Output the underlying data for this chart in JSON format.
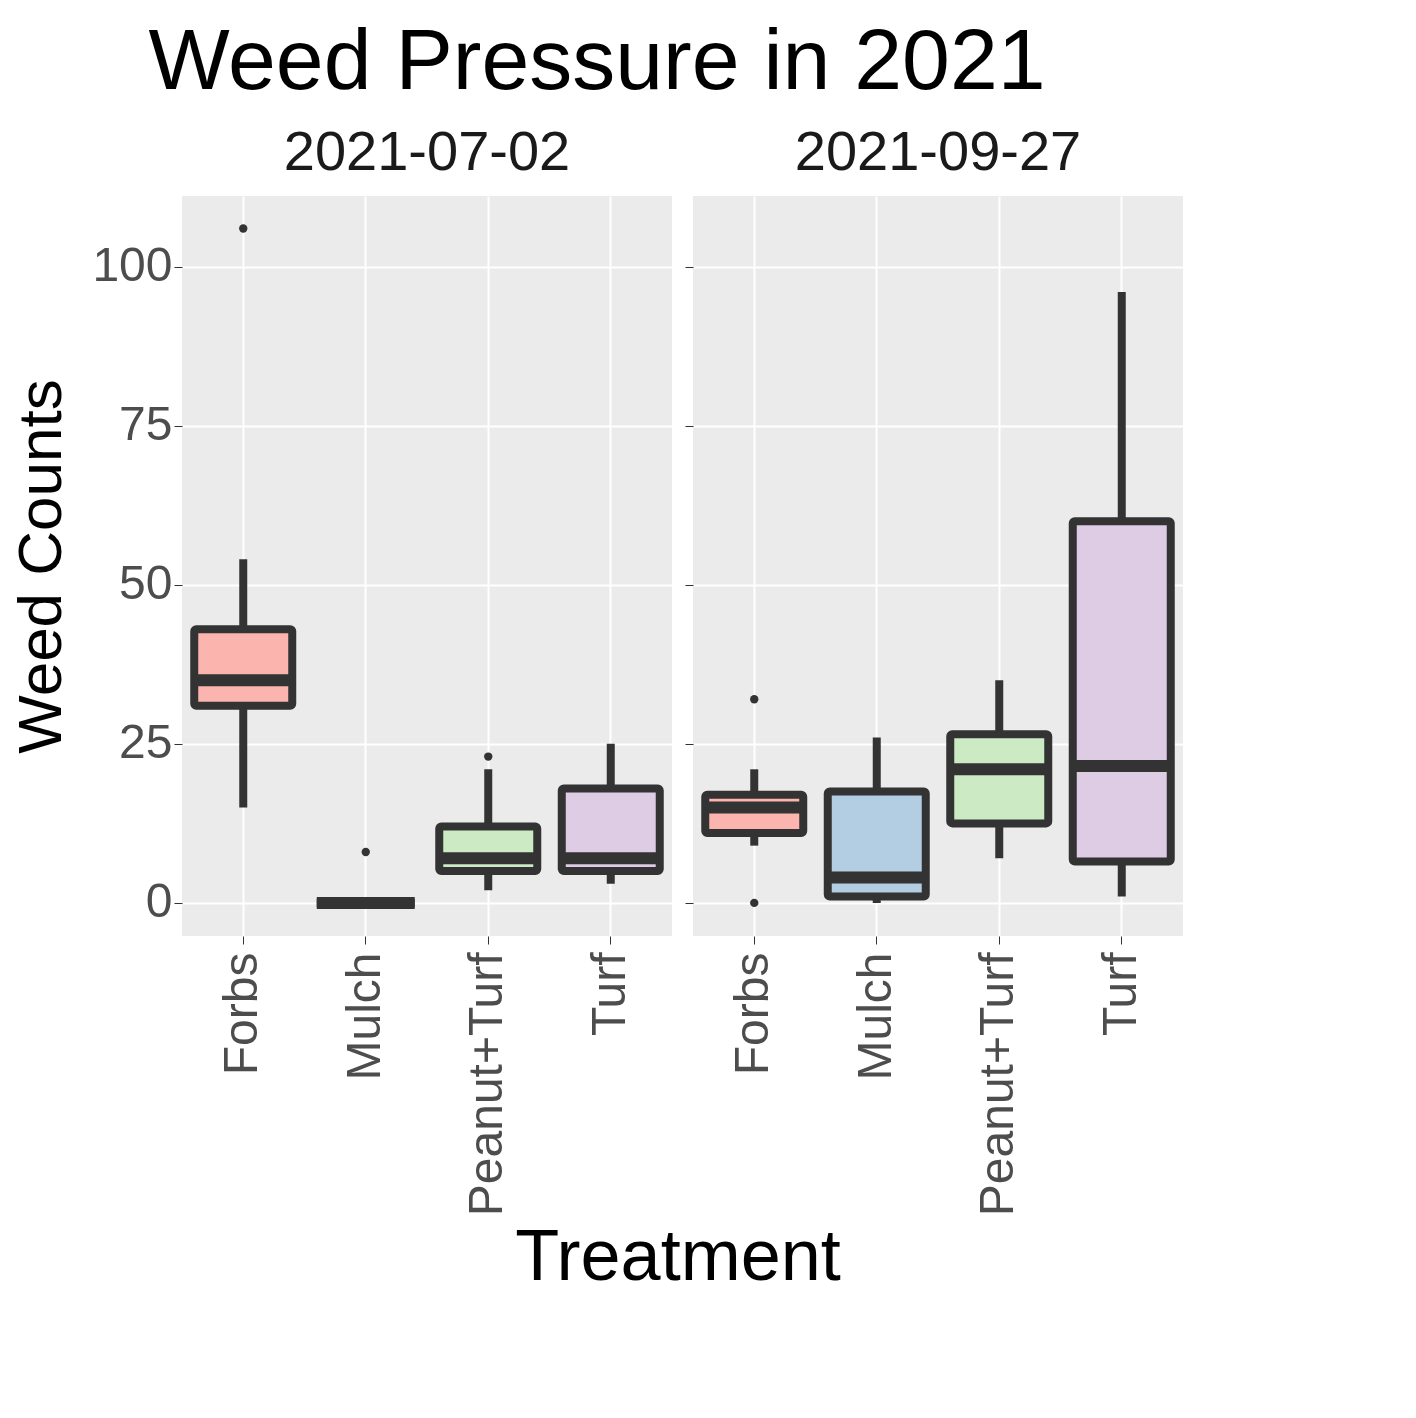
{
  "chart_data": [
    {
      "type": "box",
      "title": "Weed Pressure in 2021",
      "subtitle": "2021-07-02",
      "xlabel": "Treatment",
      "ylabel": "Weed Counts",
      "categories": [
        "Forbs",
        "Mulch",
        "Peanut+Turf",
        "Turf"
      ],
      "colors": [
        "#fbb4ae",
        null,
        "#ccebc5",
        "#decbe4"
      ],
      "boxes": [
        {
          "low": 15,
          "q1": 31,
          "median": 35,
          "q3": 43,
          "high": 54,
          "outliers": [
            106
          ]
        },
        {
          "low": 0,
          "q1": 0,
          "median": 0,
          "q3": 0,
          "high": 0,
          "outliers": [
            8
          ]
        },
        {
          "low": 2,
          "q1": 5,
          "median": 7,
          "q3": 12,
          "high": 21,
          "outliers": [
            23
          ]
        },
        {
          "low": 3,
          "q1": 5,
          "median": 7,
          "q3": 18,
          "high": 25
        }
      ],
      "ylim": [
        -5.2,
        111.1
      ],
      "yticks": [
        0,
        25,
        50,
        75,
        100
      ],
      "grid": true
    },
    {
      "type": "box",
      "subtitle": "2021-09-27",
      "categories": [
        "Forbs",
        "Mulch",
        "Peanut+Turf",
        "Turf"
      ],
      "colors": [
        "#fbb4ae",
        "#b3cde3",
        "#ccebc5",
        "#decbe4"
      ],
      "boxes": [
        {
          "low": 9,
          "q1": 11,
          "median": 15,
          "q3": 17,
          "high": 21,
          "outliers": [
            32,
            0
          ]
        },
        {
          "low": 0,
          "q1": 1,
          "median": 4,
          "q3": 17.5,
          "high": 26
        },
        {
          "low": 7,
          "q1": 12.5,
          "median": 21,
          "q3": 26.5,
          "high": 35
        },
        {
          "low": 1,
          "q1": 6.5,
          "median": 21.5,
          "q3": 60,
          "high": 96
        }
      ],
      "ylim": [
        -5.2,
        111.1
      ],
      "yticks": [
        0,
        25,
        50,
        75,
        100
      ],
      "grid": true,
      "tick_labels": "x"
    }
  ]
}
